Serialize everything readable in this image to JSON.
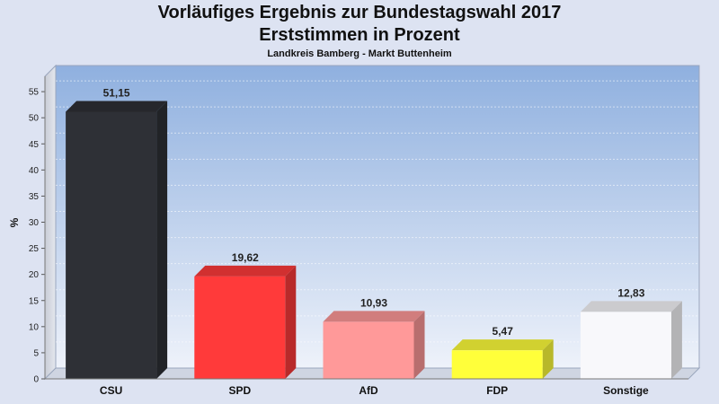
{
  "chart_data": {
    "type": "bar",
    "title": "Vorläufiges Ergebnis zur Bundestagswahl 2017",
    "subtitle": "Erststimmen in Prozent",
    "caption": "Landkreis Bamberg - Markt Buttenheim",
    "ylabel": "%",
    "xlabel": "",
    "ylim": [
      0,
      60
    ],
    "yticks": [
      0,
      5,
      10,
      15,
      20,
      25,
      30,
      35,
      40,
      45,
      50,
      55
    ],
    "grid": true,
    "categories": [
      "CSU",
      "SPD",
      "AfD",
      "FDP",
      "Sonstige"
    ],
    "values": [
      51.15,
      19.62,
      10.93,
      5.47,
      12.83
    ],
    "value_labels": [
      "51,15",
      "19,62",
      "10,93",
      "5,47",
      "12,83"
    ],
    "colors": [
      "#2e3036",
      "#ff3a3a",
      "#ff9999",
      "#ffff3a",
      "#f8f8fb"
    ]
  }
}
